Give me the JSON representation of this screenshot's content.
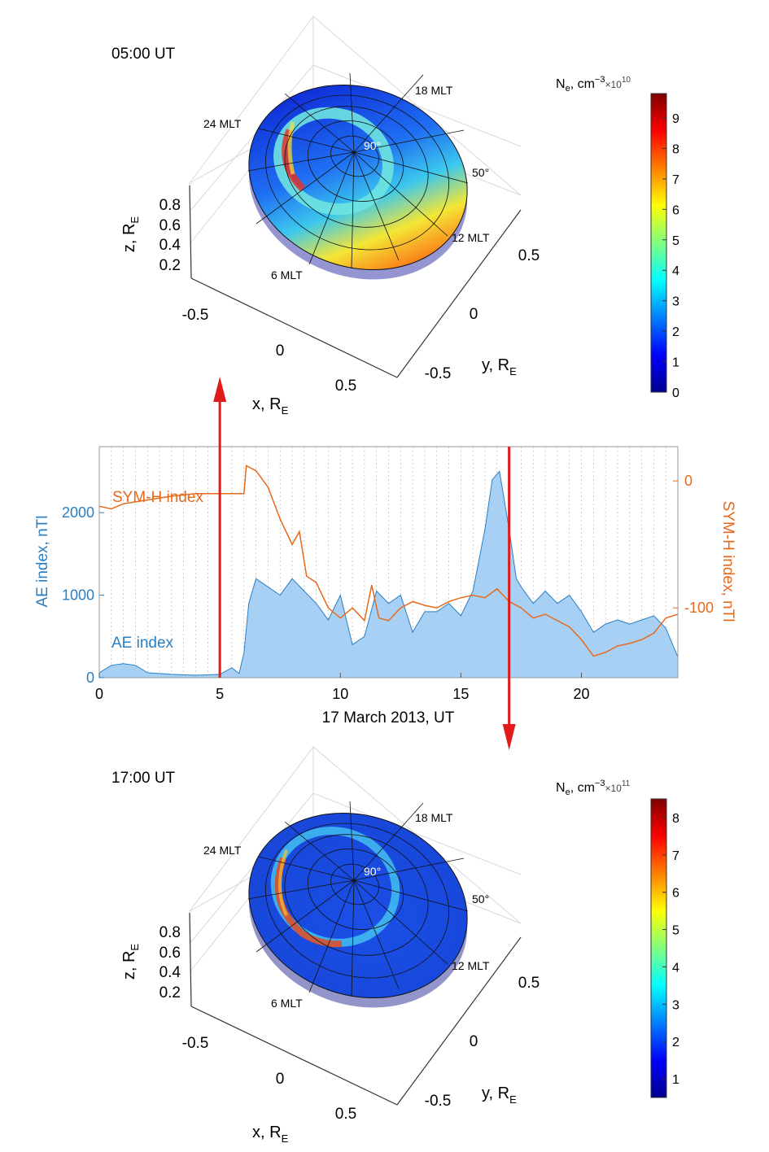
{
  "colors": {
    "ae_line": "#2a7fc2",
    "ae_fill": "#a8d0f5",
    "symh": "#e66a1c",
    "arrow": "#e01b1b",
    "axis_left": "#2a7fc2",
    "axis_right": "#e66a1c",
    "grid": "#b0b0b0"
  },
  "top_panel": {
    "time_label": "05:00 UT",
    "mlt_24": "24 MLT",
    "mlt_18": "18 MLT",
    "mlt_12": "12 MLT",
    "mlt_6": "6 MLT",
    "lat_90": "90°",
    "lat_50": "50°",
    "z_label": "z, R",
    "z_sub": "E",
    "x_label": "x, R",
    "x_sub": "E",
    "y_label": "y, R",
    "y_sub": "E",
    "z_ticks": [
      "0.8",
      "0.6",
      "0.4",
      "0.2"
    ],
    "x_ticks": [
      "-0.5",
      "0",
      "0.5"
    ],
    "y_ticks": [
      "0.5",
      "0",
      "-0.5"
    ],
    "colorbar_title": "N",
    "colorbar_sub": "e",
    "colorbar_unit": ", cm",
    "colorbar_exp": "−3",
    "colorbar_mult": "×10",
    "colorbar_mult_exp": "10",
    "colorbar_ticks": [
      "0",
      "1",
      "2",
      "3",
      "4",
      "5",
      "6",
      "7",
      "8",
      "9"
    ],
    "colorbar_max": 9.8
  },
  "bottom_panel": {
    "time_label": "17:00 UT",
    "mlt_24": "24 MLT",
    "mlt_18": "18 MLT",
    "mlt_12": "12 MLT",
    "mlt_6": "6 MLT",
    "lat_90": "90°",
    "lat_50": "50°",
    "z_label": "z, R",
    "z_sub": "E",
    "x_label": "x, R",
    "x_sub": "E",
    "y_label": "y, R",
    "y_sub": "E",
    "z_ticks": [
      "0.8",
      "0.6",
      "0.4",
      "0.2"
    ],
    "x_ticks": [
      "-0.5",
      "0",
      "0.5"
    ],
    "y_ticks": [
      "0.5",
      "0",
      "-0.5"
    ],
    "colorbar_title": "N",
    "colorbar_sub": "e",
    "colorbar_unit": ", cm",
    "colorbar_exp": "−3",
    "colorbar_mult": "×10",
    "colorbar_mult_exp": "11",
    "colorbar_ticks": [
      "1",
      "2",
      "3",
      "4",
      "5",
      "6",
      "7",
      "8"
    ],
    "colorbar_min": 0.5,
    "colorbar_max": 8.5
  },
  "chart_data": {
    "type": "area",
    "xlabel": "17 March 2013, UT",
    "ylabel_left": "AE index, nTl",
    "ylabel_right": "SYM-H index, nTl",
    "xlim": [
      0,
      24
    ],
    "ylim_left": [
      0,
      2800
    ],
    "ylim_right": [
      -155,
      27
    ],
    "x_ticks": [
      0,
      5,
      10,
      15,
      20
    ],
    "y_left_ticks": [
      0,
      1000,
      2000
    ],
    "y_right_ticks": [
      0,
      -100
    ],
    "grid_x_minor": true,
    "markers_ut": [
      5,
      17
    ],
    "series": [
      {
        "name": "AE index",
        "axis": "left",
        "x": [
          0,
          0.5,
          1,
          1.5,
          2,
          3,
          4,
          5,
          5.5,
          5.8,
          6.0,
          6.2,
          6.5,
          7,
          7.5,
          8,
          8.5,
          9,
          9.5,
          10,
          10.5,
          11,
          11.5,
          12,
          12.5,
          13,
          13.5,
          14,
          14.5,
          15,
          15.5,
          16,
          16.3,
          16.6,
          17,
          17.3,
          17.5,
          18,
          18.5,
          19,
          19.5,
          20,
          20.5,
          21,
          21.5,
          22,
          22.5,
          23,
          23.5,
          24
        ],
        "values": [
          60,
          150,
          170,
          150,
          60,
          40,
          30,
          40,
          120,
          50,
          300,
          900,
          1200,
          1100,
          1000,
          1200,
          1050,
          900,
          700,
          1000,
          400,
          500,
          1050,
          900,
          1000,
          550,
          800,
          800,
          900,
          750,
          1050,
          1800,
          2400,
          2500,
          1800,
          1200,
          1100,
          900,
          1050,
          900,
          1000,
          800,
          550,
          650,
          700,
          650,
          700,
          750,
          600,
          250
        ]
      },
      {
        "name": "SYM-H index",
        "axis": "right",
        "x": [
          0,
          0.5,
          1,
          2,
          3,
          4,
          5,
          5.5,
          6.0,
          6.1,
          6.5,
          7,
          7.5,
          8,
          8.3,
          8.6,
          9,
          9.5,
          10,
          10.5,
          11,
          11.3,
          11.6,
          12,
          12.5,
          13,
          13.5,
          14,
          14.5,
          15,
          15.5,
          16,
          16.5,
          17,
          17.5,
          18,
          18.5,
          19,
          19.5,
          20,
          20.5,
          21,
          21.5,
          22,
          22.5,
          23,
          23.5,
          24
        ],
        "values": [
          -20,
          -22,
          -18,
          -15,
          -12,
          -10,
          -10,
          -10,
          -10,
          12,
          8,
          -5,
          -30,
          -50,
          -40,
          -75,
          -80,
          -100,
          -108,
          -100,
          -110,
          -82,
          -108,
          -110,
          -100,
          -95,
          -98,
          -100,
          -95,
          -92,
          -90,
          -92,
          -85,
          -95,
          -100,
          -108,
          -105,
          -110,
          -115,
          -125,
          -138,
          -135,
          -130,
          -128,
          -125,
          -120,
          -108,
          -105
        ]
      }
    ],
    "annotations": [
      "SYM-H index",
      "AE index"
    ]
  }
}
